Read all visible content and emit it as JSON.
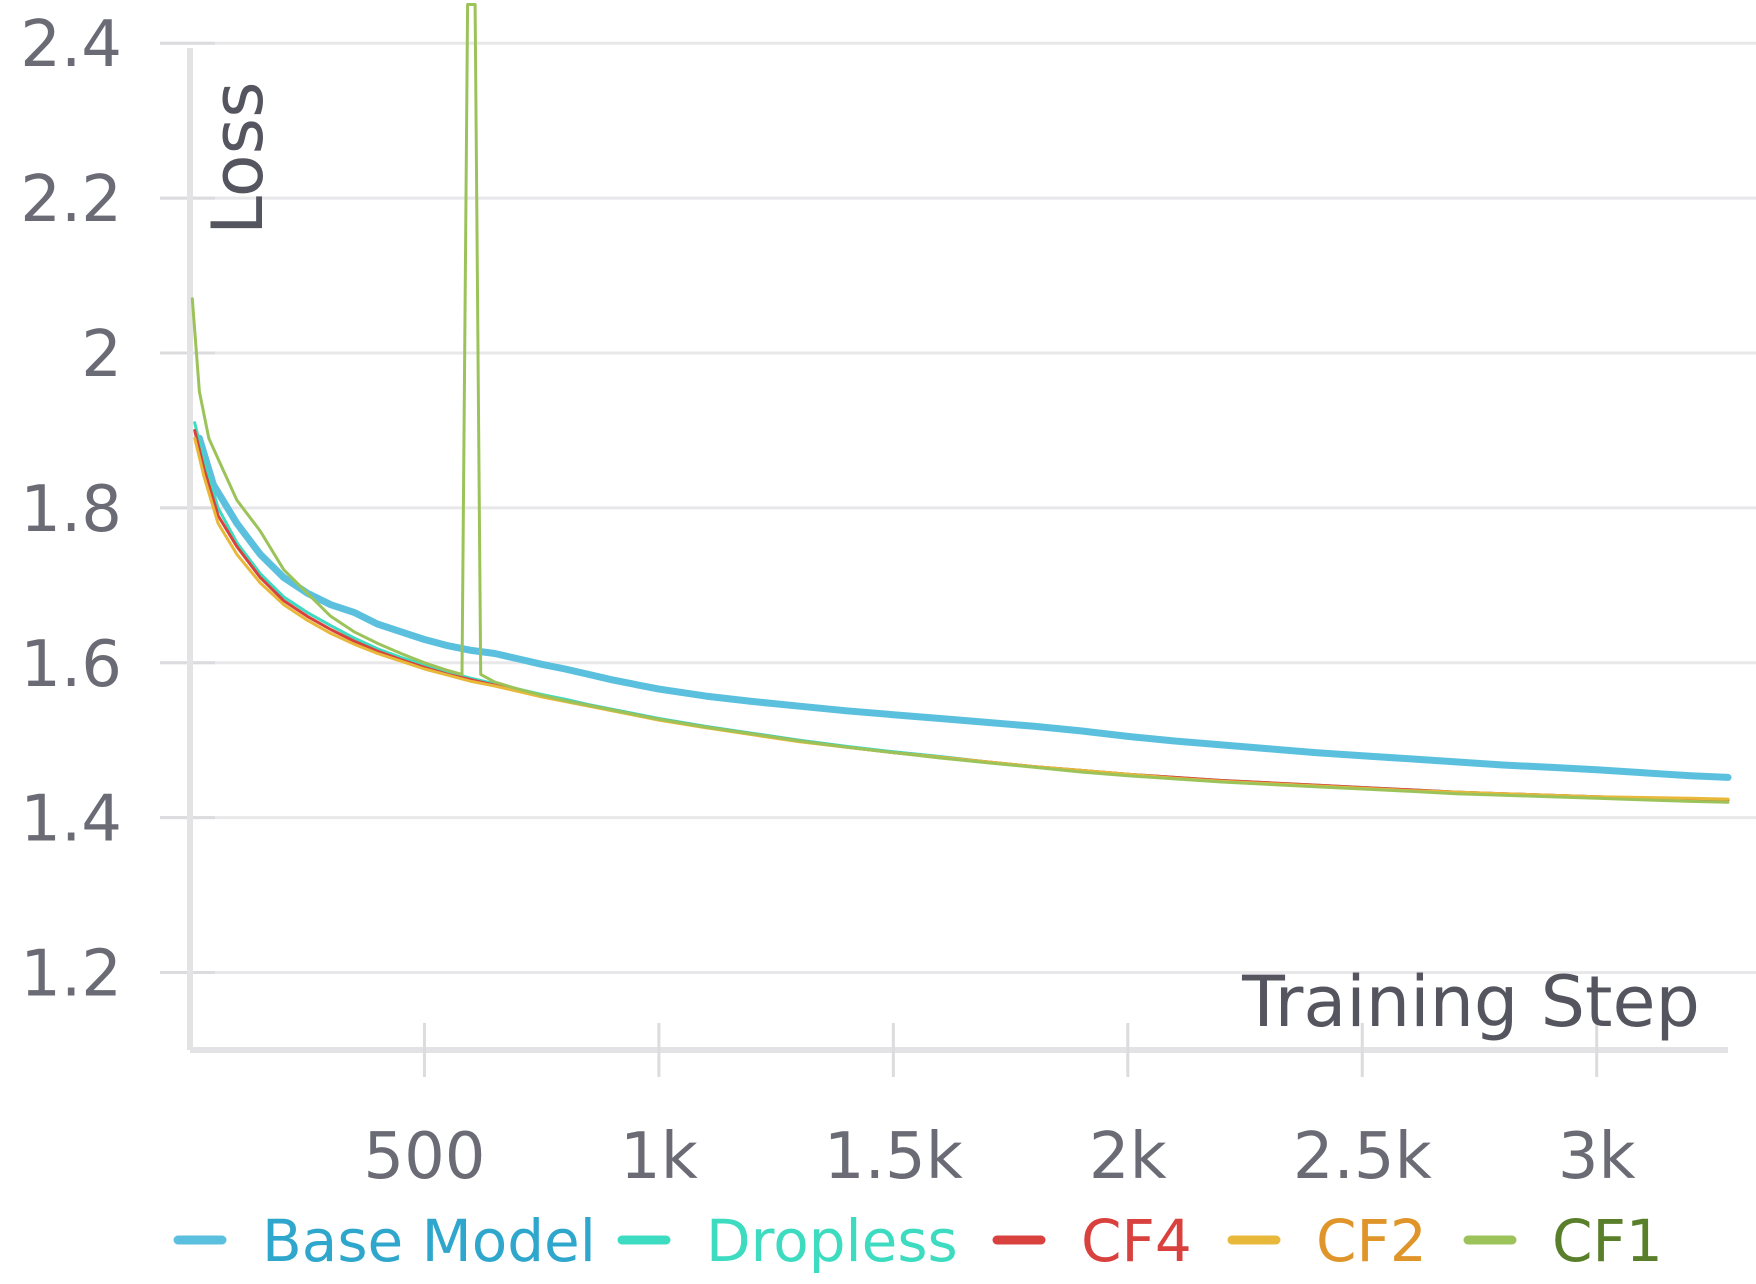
{
  "chart_data": {
    "type": "line",
    "xlabel": "Training Step",
    "ylabel": "Loss",
    "xlim": [
      0,
      3280
    ],
    "ylim": [
      1.1,
      2.43
    ],
    "x_ticks": [
      {
        "value": 500,
        "label": "500"
      },
      {
        "value": 1000,
        "label": "1k"
      },
      {
        "value": 1500,
        "label": "1.5k"
      },
      {
        "value": 2000,
        "label": "2k"
      },
      {
        "value": 2500,
        "label": "2.5k"
      },
      {
        "value": 3000,
        "label": "3k"
      }
    ],
    "y_ticks": [
      {
        "value": 1.2,
        "label": "1.2"
      },
      {
        "value": 1.4,
        "label": "1.4"
      },
      {
        "value": 1.6,
        "label": "1.6"
      },
      {
        "value": 1.8,
        "label": "1.8"
      },
      {
        "value": 2.0,
        "label": "2"
      },
      {
        "value": 2.2,
        "label": "2.2"
      },
      {
        "value": 2.4,
        "label": "2.4"
      }
    ],
    "grid": true,
    "legend_position": "bottom",
    "series": [
      {
        "name": "Base Model",
        "color": "#5bc0de",
        "label_color": "#2fa7cc",
        "width": 7,
        "points": [
          [
            20,
            1.89
          ],
          [
            50,
            1.83
          ],
          [
            100,
            1.78
          ],
          [
            150,
            1.74
          ],
          [
            200,
            1.71
          ],
          [
            250,
            1.69
          ],
          [
            300,
            1.675
          ],
          [
            350,
            1.665
          ],
          [
            400,
            1.65
          ],
          [
            450,
            1.64
          ],
          [
            500,
            1.63
          ],
          [
            550,
            1.622
          ],
          [
            600,
            1.616
          ],
          [
            650,
            1.612
          ],
          [
            700,
            1.605
          ],
          [
            750,
            1.598
          ],
          [
            800,
            1.592
          ],
          [
            850,
            1.585
          ],
          [
            900,
            1.578
          ],
          [
            950,
            1.572
          ],
          [
            1000,
            1.566
          ],
          [
            1100,
            1.557
          ],
          [
            1200,
            1.55
          ],
          [
            1300,
            1.544
          ],
          [
            1400,
            1.538
          ],
          [
            1500,
            1.533
          ],
          [
            1600,
            1.528
          ],
          [
            1700,
            1.523
          ],
          [
            1800,
            1.518
          ],
          [
            1900,
            1.512
          ],
          [
            2000,
            1.505
          ],
          [
            2100,
            1.499
          ],
          [
            2200,
            1.494
          ],
          [
            2300,
            1.489
          ],
          [
            2400,
            1.484
          ],
          [
            2500,
            1.48
          ],
          [
            2600,
            1.476
          ],
          [
            2700,
            1.472
          ],
          [
            2800,
            1.468
          ],
          [
            2900,
            1.465
          ],
          [
            3000,
            1.462
          ],
          [
            3100,
            1.458
          ],
          [
            3200,
            1.454
          ],
          [
            3280,
            1.452
          ]
        ]
      },
      {
        "name": "Dropless",
        "color": "#3ddbc0",
        "label_color": "#3ddbc0",
        "width": 3,
        "points": [
          [
            10,
            1.91
          ],
          [
            30,
            1.86
          ],
          [
            60,
            1.8
          ],
          [
            100,
            1.755
          ],
          [
            150,
            1.715
          ],
          [
            200,
            1.685
          ],
          [
            250,
            1.665
          ],
          [
            300,
            1.648
          ],
          [
            350,
            1.632
          ],
          [
            400,
            1.618
          ],
          [
            450,
            1.607
          ],
          [
            500,
            1.597
          ],
          [
            550,
            1.588
          ],
          [
            600,
            1.58
          ],
          [
            650,
            1.573
          ],
          [
            700,
            1.566
          ],
          [
            750,
            1.559
          ],
          [
            800,
            1.553
          ],
          [
            850,
            1.546
          ],
          [
            900,
            1.54
          ],
          [
            950,
            1.534
          ],
          [
            1000,
            1.528
          ],
          [
            1100,
            1.518
          ],
          [
            1200,
            1.509
          ],
          [
            1300,
            1.5
          ],
          [
            1400,
            1.492
          ],
          [
            1500,
            1.485
          ],
          [
            1600,
            1.479
          ],
          [
            1700,
            1.472
          ],
          [
            1800,
            1.466
          ],
          [
            1900,
            1.461
          ],
          [
            2000,
            1.456
          ],
          [
            2100,
            1.452
          ],
          [
            2200,
            1.448
          ],
          [
            2300,
            1.445
          ],
          [
            2400,
            1.442
          ],
          [
            2500,
            1.439
          ],
          [
            2600,
            1.436
          ],
          [
            2700,
            1.433
          ],
          [
            2800,
            1.431
          ],
          [
            2900,
            1.429
          ],
          [
            3000,
            1.427
          ],
          [
            3100,
            1.425
          ],
          [
            3200,
            1.424
          ],
          [
            3280,
            1.423
          ]
        ]
      },
      {
        "name": "CF4",
        "color": "#d9413e",
        "label_color": "#d9413e",
        "width": 3,
        "points": [
          [
            10,
            1.9
          ],
          [
            30,
            1.85
          ],
          [
            60,
            1.79
          ],
          [
            100,
            1.75
          ],
          [
            150,
            1.71
          ],
          [
            200,
            1.68
          ],
          [
            250,
            1.66
          ],
          [
            300,
            1.643
          ],
          [
            350,
            1.628
          ],
          [
            400,
            1.615
          ],
          [
            450,
            1.604
          ],
          [
            500,
            1.594
          ],
          [
            550,
            1.585
          ],
          [
            600,
            1.578
          ],
          [
            650,
            1.571
          ],
          [
            700,
            1.564
          ],
          [
            750,
            1.557
          ],
          [
            800,
            1.551
          ],
          [
            850,
            1.545
          ],
          [
            900,
            1.539
          ],
          [
            950,
            1.533
          ],
          [
            1000,
            1.527
          ],
          [
            1100,
            1.517
          ],
          [
            1200,
            1.508
          ],
          [
            1300,
            1.499
          ],
          [
            1400,
            1.491
          ],
          [
            1500,
            1.484
          ],
          [
            1600,
            1.478
          ],
          [
            1700,
            1.472
          ],
          [
            1800,
            1.466
          ],
          [
            1900,
            1.461
          ],
          [
            2000,
            1.456
          ],
          [
            2100,
            1.452
          ],
          [
            2200,
            1.448
          ],
          [
            2300,
            1.445
          ],
          [
            2400,
            1.442
          ],
          [
            2500,
            1.439
          ],
          [
            2600,
            1.436
          ],
          [
            2700,
            1.433
          ],
          [
            2800,
            1.431
          ],
          [
            2900,
            1.429
          ],
          [
            3000,
            1.427
          ],
          [
            3100,
            1.425
          ],
          [
            3200,
            1.424
          ],
          [
            3280,
            1.423
          ]
        ]
      },
      {
        "name": "CF2",
        "color": "#e8b83a",
        "label_color": "#e0952a",
        "width": 3,
        "points": [
          [
            10,
            1.89
          ],
          [
            30,
            1.84
          ],
          [
            60,
            1.78
          ],
          [
            100,
            1.74
          ],
          [
            150,
            1.703
          ],
          [
            200,
            1.675
          ],
          [
            250,
            1.655
          ],
          [
            300,
            1.638
          ],
          [
            350,
            1.624
          ],
          [
            400,
            1.612
          ],
          [
            450,
            1.602
          ],
          [
            500,
            1.592
          ],
          [
            550,
            1.584
          ],
          [
            600,
            1.576
          ],
          [
            650,
            1.57
          ],
          [
            700,
            1.563
          ],
          [
            750,
            1.556
          ],
          [
            800,
            1.55
          ],
          [
            850,
            1.544
          ],
          [
            900,
            1.538
          ],
          [
            950,
            1.532
          ],
          [
            1000,
            1.526
          ],
          [
            1100,
            1.516
          ],
          [
            1200,
            1.507
          ],
          [
            1300,
            1.498
          ],
          [
            1400,
            1.491
          ],
          [
            1500,
            1.484
          ],
          [
            1600,
            1.478
          ],
          [
            1700,
            1.472
          ],
          [
            1800,
            1.466
          ],
          [
            1900,
            1.461
          ],
          [
            2000,
            1.456
          ],
          [
            2100,
            1.451
          ],
          [
            2200,
            1.447
          ],
          [
            2300,
            1.444
          ],
          [
            2400,
            1.441
          ],
          [
            2500,
            1.438
          ],
          [
            2600,
            1.435
          ],
          [
            2700,
            1.433
          ],
          [
            2800,
            1.431
          ],
          [
            2900,
            1.429
          ],
          [
            3000,
            1.427
          ],
          [
            3100,
            1.426
          ],
          [
            3200,
            1.425
          ],
          [
            3280,
            1.424
          ]
        ]
      },
      {
        "name": "CF1",
        "color": "#9cc35a",
        "label_color": "#5a7f2a",
        "width": 3,
        "points": [
          [
            5,
            2.07
          ],
          [
            20,
            1.95
          ],
          [
            40,
            1.89
          ],
          [
            70,
            1.85
          ],
          [
            100,
            1.81
          ],
          [
            150,
            1.77
          ],
          [
            200,
            1.72
          ],
          [
            250,
            1.69
          ],
          [
            300,
            1.66
          ],
          [
            350,
            1.64
          ],
          [
            400,
            1.625
          ],
          [
            450,
            1.612
          ],
          [
            500,
            1.6
          ],
          [
            550,
            1.59
          ],
          [
            580,
            1.585
          ],
          [
            592,
            2.45
          ],
          [
            608,
            2.45
          ],
          [
            620,
            1.585
          ],
          [
            650,
            1.575
          ],
          [
            700,
            1.566
          ],
          [
            750,
            1.558
          ],
          [
            800,
            1.551
          ],
          [
            850,
            1.545
          ],
          [
            900,
            1.539
          ],
          [
            950,
            1.533
          ],
          [
            1000,
            1.527
          ],
          [
            1100,
            1.517
          ],
          [
            1200,
            1.508
          ],
          [
            1300,
            1.499
          ],
          [
            1400,
            1.491
          ],
          [
            1500,
            1.484
          ],
          [
            1600,
            1.477
          ],
          [
            1700,
            1.471
          ],
          [
            1800,
            1.465
          ],
          [
            1900,
            1.459
          ],
          [
            2000,
            1.454
          ],
          [
            2100,
            1.45
          ],
          [
            2200,
            1.446
          ],
          [
            2300,
            1.443
          ],
          [
            2400,
            1.44
          ],
          [
            2500,
            1.437
          ],
          [
            2600,
            1.434
          ],
          [
            2700,
            1.431
          ],
          [
            2800,
            1.429
          ],
          [
            2900,
            1.427
          ],
          [
            3000,
            1.425
          ],
          [
            3100,
            1.423
          ],
          [
            3200,
            1.421
          ],
          [
            3280,
            1.42
          ]
        ]
      }
    ]
  }
}
